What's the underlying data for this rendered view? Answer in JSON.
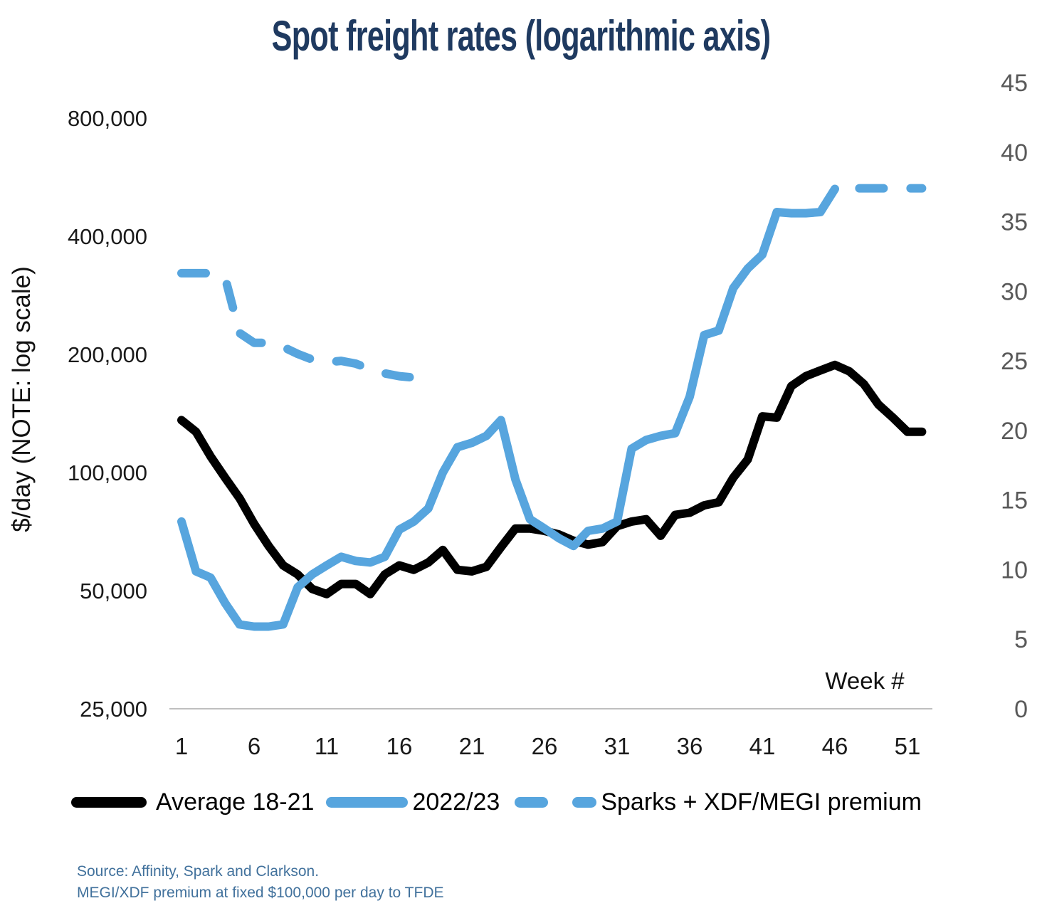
{
  "chart_data": {
    "type": "line",
    "title": "Spot freight rates (logarithmic axis)",
    "x_axis": {
      "label": "Week #",
      "ticks": [
        1,
        6,
        11,
        16,
        21,
        26,
        31,
        36,
        41,
        46,
        51
      ],
      "min": 1,
      "max": 52
    },
    "y_axis_left": {
      "label": "$/day (NOTE: log scale)",
      "scale": "log2",
      "unit": "$/day",
      "ticks": [
        {
          "value": 25000,
          "label": "25,000"
        },
        {
          "value": 50000,
          "label": "50,000"
        },
        {
          "value": 100000,
          "label": "100,000"
        },
        {
          "value": 200000,
          "label": "200,000"
        },
        {
          "value": 400000,
          "label": "400,000"
        },
        {
          "value": 800000,
          "label": "800,000"
        }
      ]
    },
    "y_axis_right": {
      "ticks": [
        0,
        5,
        10,
        15,
        20,
        25,
        30,
        35,
        40,
        45
      ],
      "range": [
        0,
        45
      ]
    },
    "grid": false,
    "legend_position": "bottom",
    "x_weeks": [
      1,
      2,
      3,
      4,
      5,
      6,
      7,
      8,
      9,
      10,
      11,
      12,
      13,
      14,
      15,
      16,
      17,
      18,
      19,
      20,
      21,
      22,
      23,
      24,
      25,
      26,
      27,
      28,
      29,
      30,
      31,
      32,
      33,
      34,
      35,
      36,
      37,
      38,
      39,
      40,
      41,
      42,
      43,
      44,
      45,
      46,
      47,
      48,
      49,
      50,
      51,
      52
    ],
    "series": [
      {
        "id": "average-18-21",
        "name": "Average 18-21",
        "axis": "left",
        "color": "#000000",
        "style": "solid",
        "values": [
          136000,
          127000,
          110000,
          97000,
          86000,
          74000,
          65000,
          58000,
          55000,
          50500,
          49000,
          52000,
          52000,
          49000,
          55000,
          58000,
          56500,
          59000,
          63500,
          56500,
          56000,
          57500,
          64500,
          72000,
          72000,
          71000,
          69500,
          67000,
          65500,
          66500,
          73000,
          75000,
          76000,
          69000,
          78000,
          79000,
          82500,
          84000,
          97000,
          108000,
          139000,
          138000,
          166000,
          176000,
          182000,
          188000,
          181000,
          168000,
          149000,
          138000,
          127000,
          127000
        ]
      },
      {
        "id": "2022-23",
        "name": "2022/23",
        "axis": "left",
        "color": "#57A5DE",
        "style": "solid",
        "values": [
          75000,
          56000,
          54000,
          46500,
          41000,
          40500,
          40500,
          41000,
          51000,
          55000,
          58000,
          61000,
          59500,
          59000,
          61000,
          71500,
          75000,
          81000,
          100000,
          116000,
          119000,
          124000,
          136000,
          96000,
          76000,
          72000,
          68000,
          65000,
          71000,
          72000,
          75000,
          115000,
          121000,
          124000,
          126000,
          156000,
          224000,
          230000,
          295000,
          331000,
          359000,
          461000,
          458000,
          458000,
          461000,
          528000,
          null,
          null,
          null,
          null,
          null,
          null
        ]
      },
      {
        "id": "sparks-premium",
        "name": "Sparks + XDF/MEGI premium",
        "axis": "right",
        "color": "#57A5DE",
        "style": "dashed",
        "values": [
          31.3,
          31.3,
          31.3,
          31,
          27,
          26.3,
          26.3,
          26,
          25.5,
          25.1,
          24.9,
          25,
          24.8,
          24.4,
          24.1,
          23.9,
          23.8,
          null,
          null,
          null,
          null,
          null,
          null,
          null,
          null,
          null,
          null,
          null,
          null,
          null,
          null,
          null,
          null,
          null,
          null,
          null,
          null,
          null,
          null,
          null,
          null,
          null,
          null,
          null,
          null,
          null,
          37.4,
          37.4,
          37.4,
          37.4,
          37.4,
          37.4
        ]
      }
    ]
  },
  "footnote": {
    "line1": "Source: Affinity, Spark and Clarkson.",
    "line2": "MEGI/XDF premium at fixed $100,000 per day to TFDE"
  },
  "colors": {
    "title_navy": "#1F3A60",
    "source_blue": "#41719C",
    "axis_line_gray": "#BFBFBF",
    "left_tick_text": "#1a1a1a",
    "right_tick_text": "#595959",
    "x_tick_text": "#1a1a1a"
  }
}
